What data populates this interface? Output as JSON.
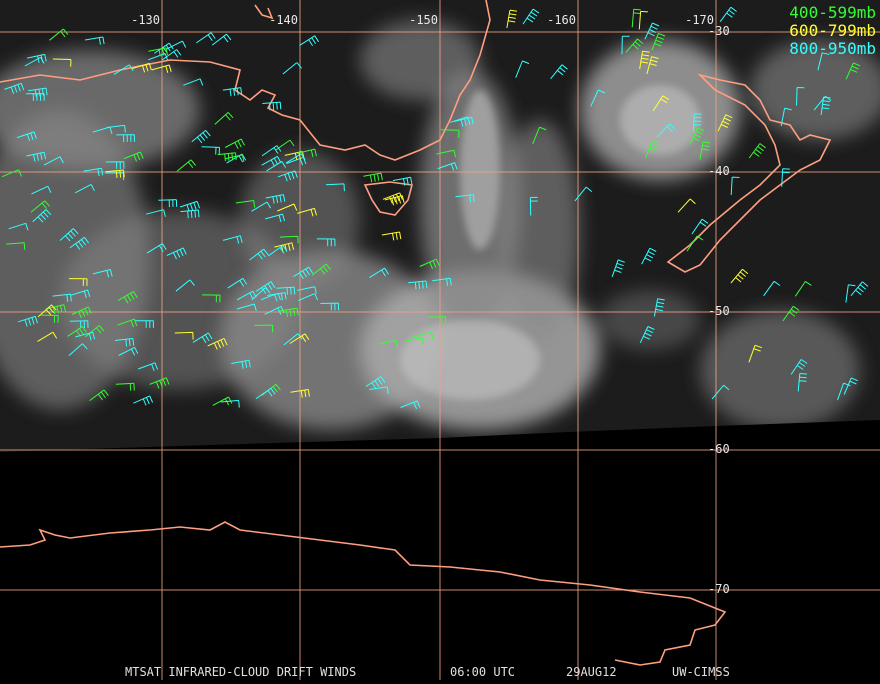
{
  "map": {
    "longitude_labels": [
      "-130",
      "-140",
      "-150",
      "-160",
      "-170"
    ],
    "latitude_labels": [
      "-30",
      "-40",
      "-50",
      "-60",
      "-70"
    ],
    "legend": [
      {
        "label": "400-599mb",
        "color": "#33ff33"
      },
      {
        "label": "600-799mb",
        "color": "#ffff33"
      },
      {
        "label": "800-950mb",
        "color": "#33ffff"
      }
    ],
    "footer": {
      "product": "MTSAT INFRARED-CLOUD DRIFT WINDS",
      "time": "06:00 UTC",
      "date": "29AUG12",
      "source": "UW-CIMSS"
    }
  }
}
